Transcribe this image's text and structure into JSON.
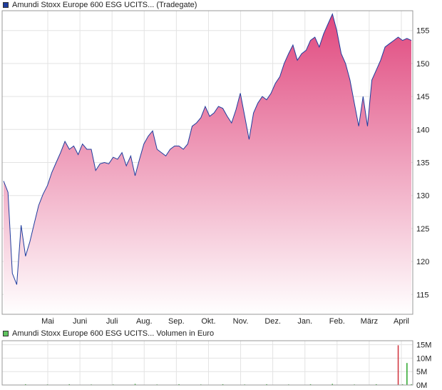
{
  "chart_data": [
    {
      "type": "area",
      "title": "Amundi Stoxx Europe 600 ESG UCITS... (Tradegate)",
      "x_ticks": [
        "Mai",
        "Juni",
        "Juli",
        "Aug.",
        "Sep.",
        "Okt.",
        "Nov.",
        "Dez.",
        "Jan.",
        "Feb.",
        "März",
        "April"
      ],
      "y_ticks": [
        "115",
        "120",
        "125",
        "130",
        "135",
        "140",
        "145",
        "150",
        "155"
      ],
      "ylim": [
        112,
        158
      ],
      "grid": true,
      "series": [
        {
          "name": "Amundi Stoxx Europe 600 ESG UCITS...",
          "x": [
            0,
            1,
            2,
            3,
            4,
            5,
            6,
            7,
            8,
            9,
            10,
            11,
            12,
            13,
            14,
            15,
            16,
            17,
            18,
            19,
            20,
            21,
            22,
            23,
            24,
            25,
            26,
            27,
            28,
            29,
            30,
            31,
            32,
            33,
            34,
            35,
            36,
            37,
            38,
            39,
            40,
            41,
            42,
            43,
            44,
            45,
            46,
            47,
            48,
            49,
            50,
            51,
            52,
            53,
            54,
            55,
            56,
            57,
            58,
            59,
            60,
            61,
            62,
            63,
            64,
            65,
            66,
            67,
            68,
            69,
            70,
            71,
            72,
            73,
            74,
            75,
            76,
            77,
            78,
            79,
            80,
            81,
            82,
            83,
            84,
            85,
            86,
            87,
            88,
            89,
            90,
            91,
            92,
            93
          ],
          "values": [
            132.2,
            130.5,
            118.2,
            116.5,
            125.5,
            120.8,
            123.0,
            125.8,
            128.5,
            130.2,
            131.5,
            133.5,
            135.0,
            136.5,
            138.2,
            137.0,
            137.5,
            136.2,
            137.8,
            137.0,
            137.0,
            133.8,
            134.8,
            135.0,
            134.8,
            135.8,
            135.5,
            136.5,
            134.5,
            136.0,
            133.0,
            135.5,
            137.8,
            139.0,
            139.8,
            137.0,
            136.5,
            136.0,
            137.0,
            137.5,
            137.5,
            137.0,
            137.8,
            140.5,
            141.0,
            141.8,
            143.5,
            142.0,
            142.5,
            143.5,
            143.2,
            142.0,
            141.0,
            143.0,
            145.5,
            142.0,
            138.5,
            142.5,
            144.0,
            145.0,
            144.5,
            145.5,
            147.0,
            148.0,
            150.0,
            151.5,
            152.8,
            150.5,
            151.5,
            152.0,
            153.5,
            154.0,
            152.5,
            154.5,
            156.0,
            157.5,
            155.0,
            151.5,
            150.0,
            147.5,
            144.0,
            140.5,
            145.0,
            140.5,
            147.5,
            149.0,
            150.5,
            152.5,
            153.0,
            153.5,
            154.0,
            153.5,
            153.8,
            153.5
          ]
        }
      ]
    },
    {
      "type": "bar",
      "title": "Amundi Stoxx Europe 600 ESG UCITS... Volumen in Euro",
      "y_ticks": [
        "0M",
        "5M",
        "10M",
        "15M"
      ],
      "ylim": [
        0,
        16.5
      ],
      "unit": "M Euro",
      "series": [
        {
          "name": "Volumen in Euro",
          "x": [
            0,
            5,
            10,
            15,
            20,
            25,
            30,
            35,
            40,
            45,
            50,
            55,
            60,
            65,
            70,
            75,
            80,
            85,
            90,
            91,
            92,
            93
          ],
          "values": [
            0.1,
            0.3,
            0.2,
            0.3,
            0.2,
            0.2,
            0.4,
            0.2,
            0.3,
            0.2,
            0.3,
            0.2,
            0.3,
            0.2,
            0.3,
            0.4,
            0.2,
            0.3,
            14.8,
            0.3,
            8.2,
            0.3
          ]
        }
      ]
    }
  ],
  "colors": {
    "price_line": "#1f3d9e",
    "area_top": "#e0487e",
    "area_bottom": "#ffffff",
    "volume_bar": "#2aa52a",
    "volume_spike": "#d0303a",
    "grid": "#e3e3e3",
    "frame": "#999999",
    "legend_price_swatch": "#1f3d9e",
    "legend_volume_swatch": "#5fc45f"
  }
}
